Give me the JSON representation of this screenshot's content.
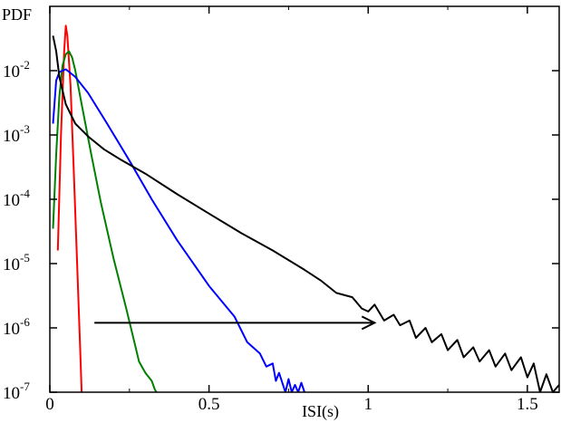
{
  "chart_data": {
    "type": "line",
    "xlabel": "ISI(s)",
    "ylabel": "PDF",
    "xlim": [
      0,
      1.6
    ],
    "ylog": true,
    "ylim": [
      1e-07,
      0.1
    ],
    "x_ticks": [
      {
        "value": 0,
        "label": "0"
      },
      {
        "value": 0.5,
        "label": "0.5"
      },
      {
        "value": 1,
        "label": "1"
      },
      {
        "value": 1.5,
        "label": "1.5"
      }
    ],
    "y_ticks": [
      {
        "value": 0.01,
        "base": "10",
        "exp": "-2"
      },
      {
        "value": 0.001,
        "base": "10",
        "exp": "-3"
      },
      {
        "value": 0.0001,
        "base": "10",
        "exp": "-4"
      },
      {
        "value": 1e-05,
        "base": "10",
        "exp": "-5"
      },
      {
        "value": 1e-06,
        "base": "10",
        "exp": "-6"
      },
      {
        "value": 1e-07,
        "base": "10",
        "exp": "-7"
      }
    ],
    "grid": false,
    "series": [
      {
        "color": "#ff0000",
        "x": [
          0.025,
          0.035,
          0.045,
          0.05,
          0.055,
          0.065,
          0.075,
          0.085,
          0.095,
          0.1
        ],
        "y": [
          1.6e-05,
          0.001,
          0.02,
          0.05,
          0.035,
          0.006,
          0.0003,
          1.2e-05,
          5e-07,
          1e-07
        ]
      },
      {
        "color": "#008000",
        "x": [
          0.01,
          0.02,
          0.03,
          0.04,
          0.05,
          0.06,
          0.07,
          0.08,
          0.1,
          0.13,
          0.16,
          0.2,
          0.24,
          0.28,
          0.3,
          0.32,
          0.33,
          0.335
        ],
        "y": [
          3.5e-05,
          0.0005,
          0.004,
          0.012,
          0.018,
          0.02,
          0.016,
          0.01,
          0.003,
          0.0005,
          9e-05,
          1.2e-05,
          2e-06,
          3e-07,
          2e-07,
          1.5e-07,
          1.1e-07,
          1e-07
        ]
      },
      {
        "color": "#0000ff",
        "x": [
          0.01,
          0.02,
          0.03,
          0.05,
          0.08,
          0.12,
          0.18,
          0.25,
          0.32,
          0.4,
          0.5,
          0.58,
          0.62,
          0.66,
          0.68,
          0.7,
          0.71,
          0.72,
          0.74,
          0.75,
          0.76,
          0.77,
          0.78,
          0.79,
          0.8
        ],
        "y": [
          0.0015,
          0.007,
          0.0095,
          0.0105,
          0.008,
          0.0045,
          0.0015,
          0.0004,
          0.0001,
          2.3e-05,
          4.5e-06,
          1.5e-06,
          6e-07,
          4e-07,
          2.5e-07,
          2.8e-07,
          1.5e-07,
          2e-07,
          1e-07,
          1.6e-07,
          1e-07,
          1.3e-07,
          1e-07,
          1.4e-07,
          1e-07
        ]
      },
      {
        "color": "#000000",
        "x": [
          0.01,
          0.02,
          0.03,
          0.05,
          0.08,
          0.12,
          0.17,
          0.22,
          0.3,
          0.4,
          0.5,
          0.6,
          0.7,
          0.8,
          0.85,
          0.9,
          0.95,
          0.98,
          1.0,
          1.02,
          1.05,
          1.08,
          1.1,
          1.13,
          1.15,
          1.18,
          1.2,
          1.23,
          1.25,
          1.28,
          1.3,
          1.33,
          1.35,
          1.38,
          1.4,
          1.43,
          1.45,
          1.48,
          1.5,
          1.52,
          1.54,
          1.56,
          1.58,
          1.6
        ],
        "y": [
          0.035,
          0.02,
          0.008,
          0.003,
          0.0015,
          0.00095,
          0.0006,
          0.00042,
          0.00025,
          0.00012,
          6e-05,
          3e-05,
          1.6e-05,
          8e-06,
          5.5e-06,
          3.5e-06,
          3e-06,
          2e-06,
          1.8e-06,
          2.3e-06,
          1.3e-06,
          1.6e-06,
          1.1e-06,
          1.3e-06,
          7e-07,
          1e-06,
          6e-07,
          8e-07,
          4.5e-07,
          6.5e-07,
          3.5e-07,
          5e-07,
          3e-07,
          4.5e-07,
          2.5e-07,
          4e-07,
          2.2e-07,
          3.5e-07,
          1.7e-07,
          2.8e-07,
          1e-07,
          1.9e-07,
          1e-07,
          1.3e-07
        ]
      }
    ],
    "annotations": [
      {
        "type": "arrow",
        "x_start": 0.14,
        "x_end": 1.02,
        "y": 1.2e-06,
        "color": "#000000"
      }
    ]
  }
}
